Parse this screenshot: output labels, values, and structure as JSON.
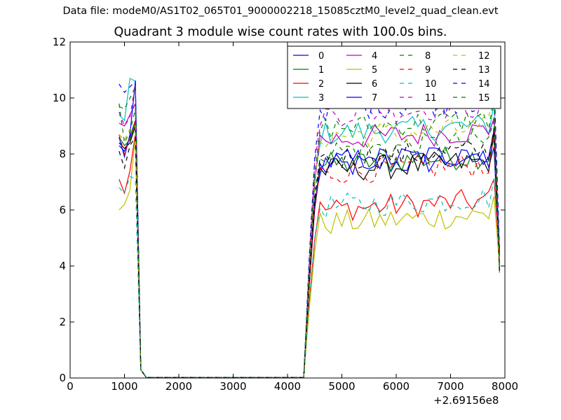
{
  "chart_data": {
    "type": "line",
    "suptitle": "Data file: modeM0/AS1T02_065T01_9000002218_15085cztM0_level2_quad_clean.evt",
    "title": "Quadrant 3 module wise count rates with 100.0s bins.",
    "xlabel": "",
    "ylabel": "",
    "x_offset_label": "+2.69156e8",
    "xlim": [
      0,
      8000
    ],
    "ylim": [
      0,
      12
    ],
    "xticks": [
      "0",
      "1000",
      "2000",
      "3000",
      "4000",
      "5000",
      "6000",
      "7000",
      "8000"
    ],
    "yticks": [
      "0",
      "2",
      "4",
      "6",
      "8",
      "10",
      "12"
    ],
    "grid": false,
    "legend_position": "top-right",
    "x_segment1": [
      900,
      1000,
      1100,
      1200,
      1300,
      1400
    ],
    "x_gap": [
      1500,
      1600,
      1700,
      1800,
      1900,
      2000,
      2100,
      2200,
      2300,
      2400,
      2500,
      2600,
      2700,
      2800,
      2900,
      3000,
      3100,
      3200,
      3300,
      3400,
      3500,
      3600,
      3700,
      3800,
      3900,
      4000,
      4100,
      4200,
      4300
    ],
    "x_segment2_start": 4300,
    "x_segment2_step": 100,
    "series": [
      {
        "name": "0",
        "color": "#0000ff",
        "dashed": false,
        "level": 7.5,
        "seg1": [
          8.3,
          8.1,
          8.6,
          9.2,
          0.3,
          0.02
        ]
      },
      {
        "name": "1",
        "color": "#008000",
        "dashed": false,
        "level": 7.6,
        "seg1": [
          8.6,
          8.3,
          8.5,
          9.1,
          0.3,
          0.02
        ]
      },
      {
        "name": "2",
        "color": "#ff0000",
        "dashed": false,
        "level": 6.0,
        "seg1": [
          7.1,
          6.6,
          7.4,
          8.7,
          0.3,
          0.02
        ]
      },
      {
        "name": "3",
        "color": "#00bfbf",
        "dashed": false,
        "level": 8.7,
        "seg1": [
          9.4,
          9.2,
          10.7,
          10.6,
          0.3,
          0.02
        ]
      },
      {
        "name": "4",
        "color": "#bf00bf",
        "dashed": false,
        "level": 8.5,
        "seg1": [
          9.1,
          9.0,
          9.4,
          9.8,
          0.3,
          0.02
        ]
      },
      {
        "name": "5",
        "color": "#bfbf00",
        "dashed": false,
        "level": 5.5,
        "seg1": [
          6.0,
          6.2,
          6.7,
          8.6,
          0.3,
          0.02
        ]
      },
      {
        "name": "6",
        "color": "#000000",
        "dashed": false,
        "level": 7.4,
        "seg1": [
          8.4,
          8.2,
          8.4,
          9.0,
          0.3,
          0.02
        ]
      },
      {
        "name": "7",
        "color": "#0000ff",
        "dashed": false,
        "level": 7.7,
        "seg1": [
          8.6,
          7.9,
          8.7,
          10.6,
          0.3,
          0.02
        ]
      },
      {
        "name": "8",
        "color": "#008000",
        "dashed": true,
        "level": 8.1,
        "seg1": [
          9.8,
          8.4,
          8.8,
          9.6,
          0.3,
          0.02
        ]
      },
      {
        "name": "9",
        "color": "#ff0000",
        "dashed": true,
        "level": 7.3,
        "seg1": [
          8.7,
          8.0,
          8.6,
          9.2,
          0.3,
          0.02
        ]
      },
      {
        "name": "10",
        "color": "#00bfbf",
        "dashed": true,
        "level": 6.1,
        "seg1": [
          6.8,
          6.6,
          7.2,
          7.1,
          0.3,
          0.02
        ]
      },
      {
        "name": "11",
        "color": "#bf00bf",
        "dashed": true,
        "level": 9.4,
        "seg1": [
          9.5,
          9.0,
          9.3,
          10.5,
          0.3,
          0.02
        ]
      },
      {
        "name": "12",
        "color": "#bfbf00",
        "dashed": true,
        "level": 8.6,
        "seg1": [
          8.7,
          8.5,
          8.9,
          9.0,
          0.3,
          0.02
        ]
      },
      {
        "name": "13",
        "color": "#000000",
        "dashed": true,
        "level": 7.8,
        "seg1": [
          8.1,
          7.5,
          8.3,
          8.6,
          0.3,
          0.02
        ]
      },
      {
        "name": "14",
        "color": "#0000ff",
        "dashed": true,
        "level": 9.6,
        "seg1": [
          10.5,
          10.2,
          10.4,
          10.6,
          0.3,
          0.02
        ]
      },
      {
        "name": "15",
        "color": "#008000",
        "dashed": true,
        "level": 8.9,
        "seg1": [
          9.7,
          9.6,
          10.0,
          10.4,
          0.3,
          0.02
        ]
      }
    ]
  }
}
